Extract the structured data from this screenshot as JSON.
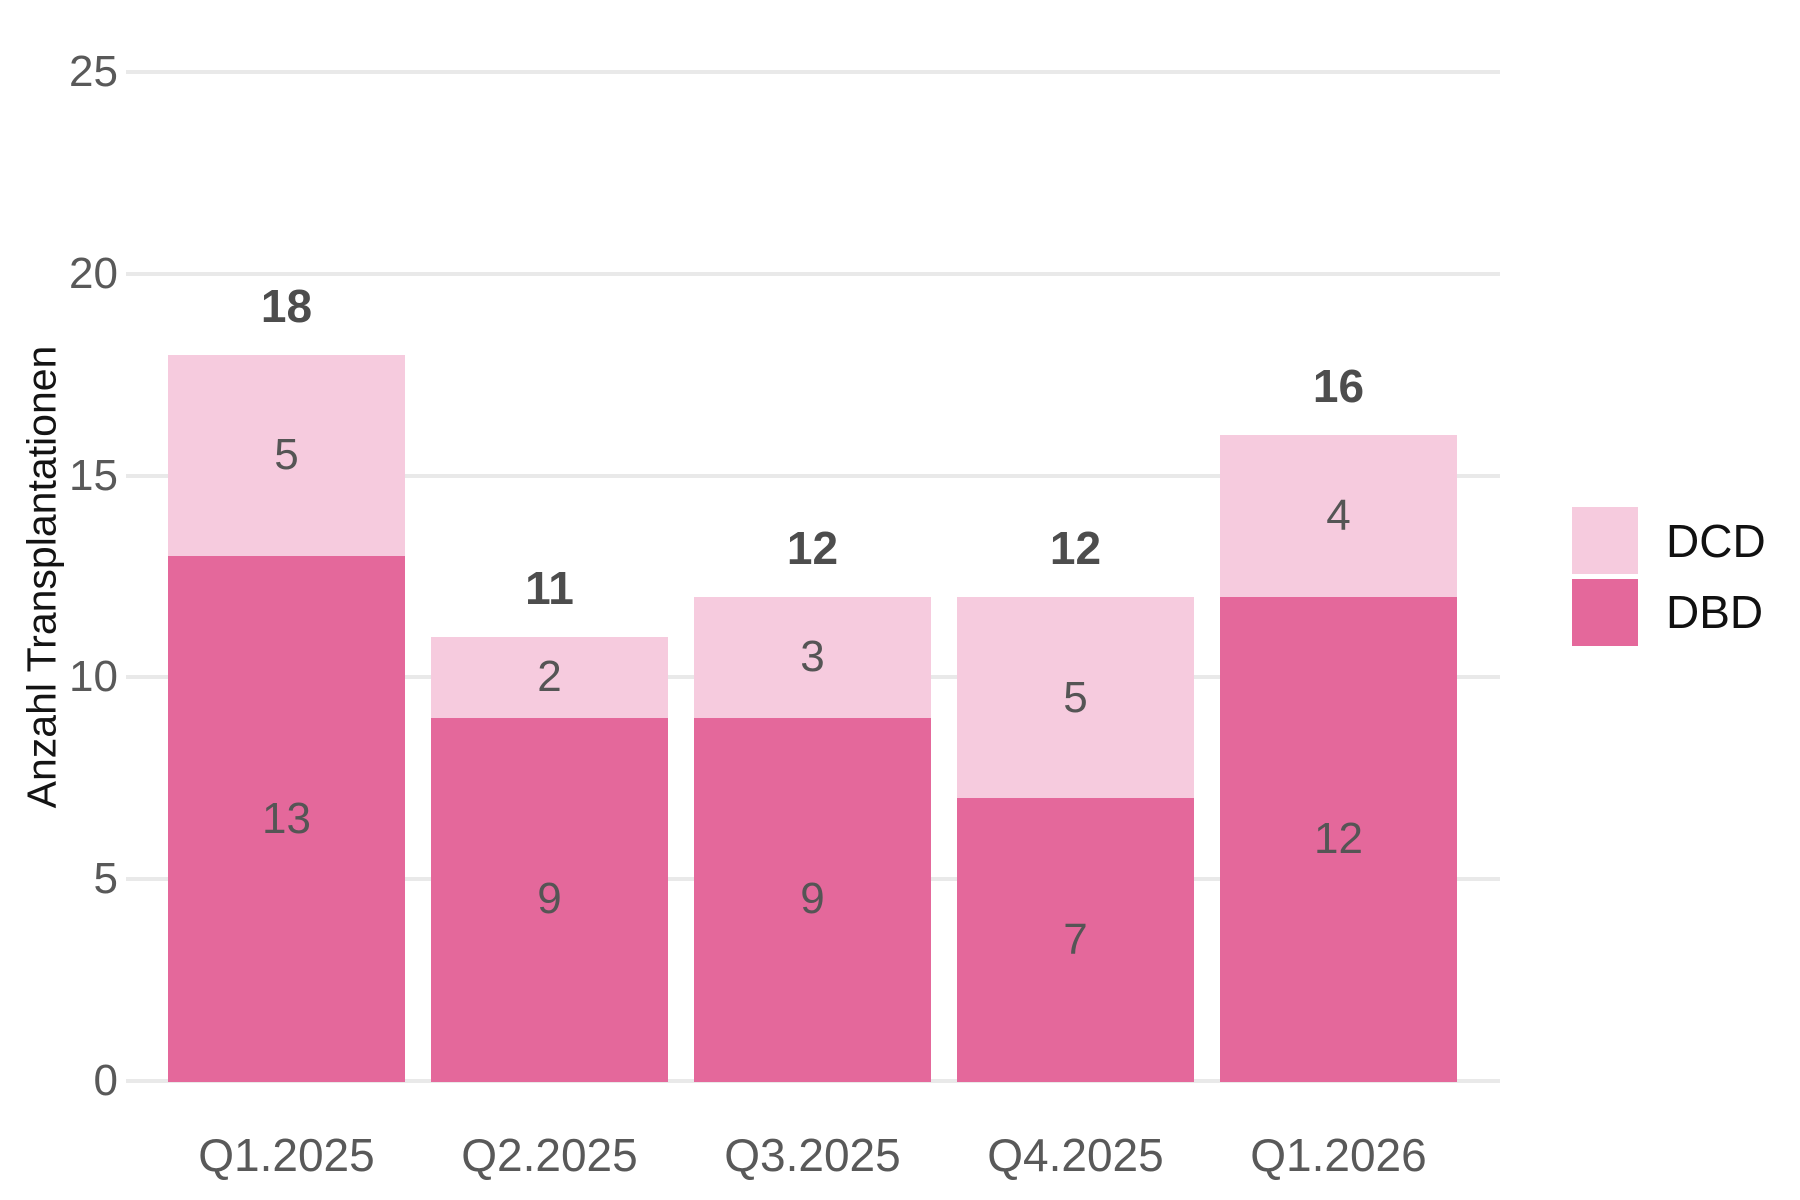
{
  "chart_data": {
    "type": "bar",
    "stacked": true,
    "title": "",
    "categories": [
      "Q1.2025",
      "Q2.2025",
      "Q3.2025",
      "Q4.2025",
      "Q1.2026"
    ],
    "series": [
      {
        "name": "DBD",
        "color": "#e4689b",
        "values": [
          13,
          9,
          9,
          7,
          12
        ]
      },
      {
        "name": "DCD",
        "color": "#f6cbde",
        "values": [
          5,
          2,
          3,
          5,
          4
        ]
      }
    ],
    "totals": [
      18,
      11,
      12,
      12,
      16
    ],
    "xlabel": "",
    "ylabel": "Anzahl Transplantationen",
    "ylim": [
      0,
      25
    ],
    "yticks": [
      0,
      5,
      10,
      15,
      20,
      25
    ],
    "grid": "horizontal",
    "gridline_color": "#e9e9e9",
    "background_color": "#ffffff",
    "legend_position": "right",
    "legend_order": [
      "DCD",
      "DBD"
    ]
  }
}
